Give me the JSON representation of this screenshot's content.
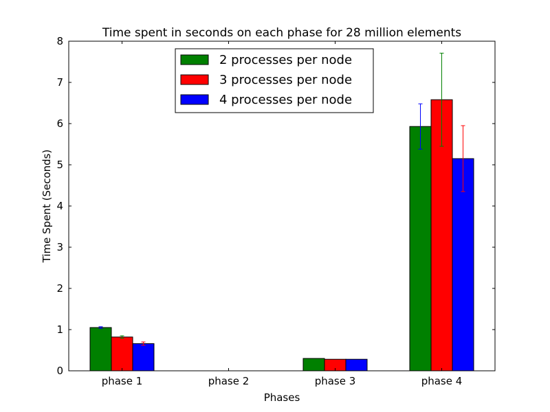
{
  "chart_data": {
    "type": "bar",
    "title": "Time spent in seconds on each phase for 28 million elements",
    "xlabel": "Phases",
    "ylabel": "Time Spent (Seconds)",
    "ylim": [
      0,
      8
    ],
    "yticks": [
      "0",
      "1",
      "2",
      "3",
      "4",
      "5",
      "6",
      "7",
      "8"
    ],
    "categories": [
      "phase 1",
      "phase 2",
      "phase 3",
      "phase 4"
    ],
    "grid": false,
    "legend_position": "top-center",
    "series": [
      {
        "name": "2 processes per node",
        "color": "#008000",
        "values": [
          1.05,
          0.0,
          0.3,
          5.93
        ],
        "errors": [
          0.02,
          0.0,
          0.0,
          0.55
        ],
        "error_color": "#0000ff"
      },
      {
        "name": "3 processes per node",
        "color": "#ff0000",
        "values": [
          0.82,
          0.0,
          0.28,
          6.58
        ],
        "errors": [
          0.03,
          0.0,
          0.0,
          1.13
        ],
        "error_color": "#008000"
      },
      {
        "name": "4 processes per node",
        "color": "#0000ff",
        "values": [
          0.66,
          0.0,
          0.28,
          5.15
        ],
        "errors": [
          0.04,
          0.0,
          0.0,
          0.8
        ],
        "error_color": "#ff0000"
      }
    ]
  }
}
